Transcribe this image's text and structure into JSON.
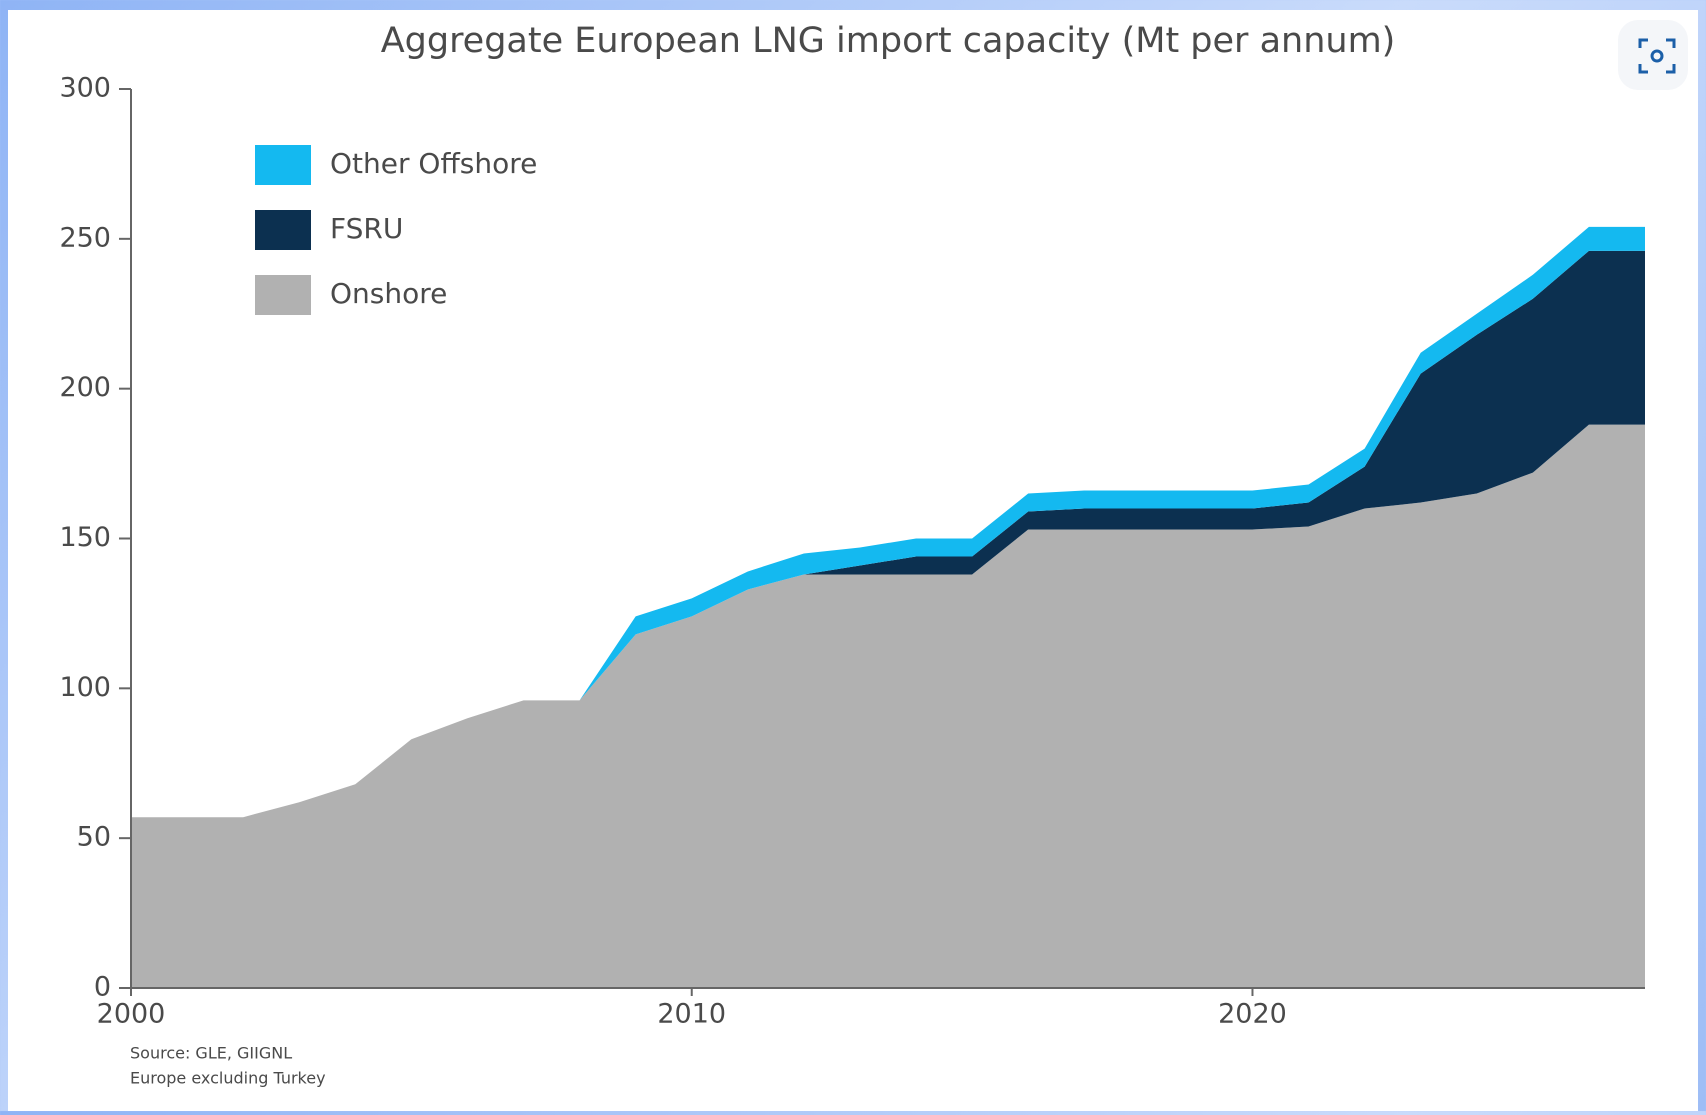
{
  "chart_data": {
    "type": "stacked_area",
    "title": "Aggregate European LNG import capacity (Mt per annum)",
    "x": [
      2000,
      2001,
      2002,
      2003,
      2004,
      2005,
      2006,
      2007,
      2008,
      2009,
      2010,
      2011,
      2012,
      2013,
      2014,
      2015,
      2016,
      2017,
      2018,
      2019,
      2020,
      2021,
      2022,
      2023,
      2024,
      2025,
      2026,
      2027
    ],
    "series": [
      {
        "name": "Onshore",
        "color": "#b1b1b1",
        "values": [
          57,
          57,
          57,
          62,
          68,
          83,
          90,
          96,
          96,
          118,
          124,
          133,
          138,
          138,
          138,
          138,
          153,
          153,
          153,
          153,
          153,
          154,
          160,
          162,
          165,
          172,
          188,
          188
        ]
      },
      {
        "name": "FSRU",
        "color": "#0c3050",
        "values": [
          0,
          0,
          0,
          0,
          0,
          0,
          0,
          0,
          0,
          0,
          0,
          0,
          0,
          3,
          6,
          6,
          6,
          7,
          7,
          7,
          7,
          8,
          14,
          43,
          53,
          58,
          58,
          58
        ]
      },
      {
        "name": "Other Offshore",
        "color": "#14b9f0",
        "values": [
          0,
          0,
          0,
          0,
          0,
          0,
          0,
          0,
          0,
          6,
          6,
          6,
          7,
          6,
          6,
          6,
          6,
          6,
          6,
          6,
          6,
          6,
          6,
          7,
          7,
          8,
          8,
          8
        ]
      }
    ],
    "xlim": [
      2000,
      2027
    ],
    "xticks": [
      2000,
      2010,
      2020
    ],
    "ylim": [
      0,
      300
    ],
    "yticks": [
      0,
      50,
      100,
      150,
      200,
      250,
      300
    ],
    "legend": "upper left",
    "notes": [
      "Source: GLE, GIIGNL",
      "Europe excluding Turkey"
    ]
  }
}
